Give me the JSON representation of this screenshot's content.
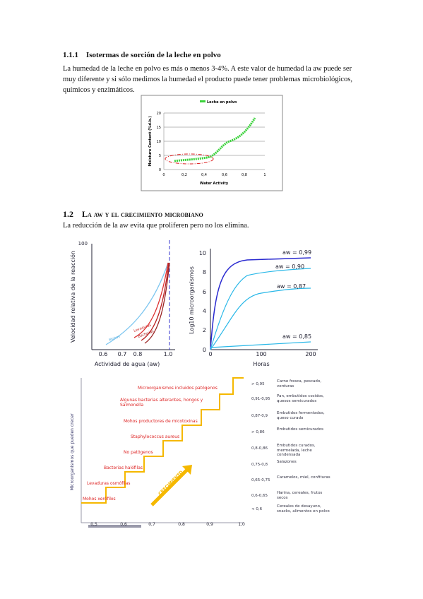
{
  "section1": {
    "number": "1.1.1",
    "title": "Isotermas de sorción de la leche en polvo",
    "paragraph": "La humedad de la leche en polvo es más o menos 3-4%. A este valor de humedad la aw puede ser muy diferente y si sólo medimos la humedad el producto puede tener problemas microbiológicos, químicos y enzimáticos."
  },
  "figure1": {
    "legend": "Leche en polvo",
    "y_label": "Moisture Content (%d.b.)",
    "x_label": "Water Activity",
    "y_ticks": [
      "0",
      "5",
      "10",
      "15",
      "20"
    ],
    "x_ticks": [
      "0",
      "0,2",
      "0,4",
      "0,6",
      "0,8",
      "1"
    ]
  },
  "section2": {
    "number": "1.2",
    "title": "La aw y el crecimiento microbiano",
    "paragraph": "La reducción de la aw evita que proliferen pero no los elimina."
  },
  "figure2": {
    "left": {
      "y_label": "Velocidad relativa de la reacción",
      "y_tick": "100",
      "x_ticks": [
        "0.6",
        "0.7",
        "0.8",
        "1.0"
      ],
      "x_label": "Actividad de agua (aw)",
      "curves": [
        "Mohos",
        "Levaduras",
        "Bacterias"
      ]
    },
    "right": {
      "y_label": "Log10 microorganismos",
      "y_ticks": [
        "0",
        "2",
        "4",
        "6",
        "8",
        "10"
      ],
      "x_ticks": [
        "0",
        "100",
        "200"
      ],
      "x_label": "Horas",
      "curves": [
        "aw = 0,99",
        "aw = 0,90",
        "aw = 0,87",
        "aw = 0,85"
      ]
    }
  },
  "figure3": {
    "y_label": "Microorganismos que pueden crecer",
    "arrow": "CRECIMIENTO",
    "x_ticks": [
      "0,5",
      "0,6",
      "0,7",
      "0,8",
      "0,9",
      "1,0"
    ],
    "organisms": [
      "Mohos xerófilos",
      "Levaduras osmófilas",
      "Bacterias halófilas",
      "No patógenos",
      "Staphylococcus aureus",
      "Mohos productores de micotoxinas",
      "Algunas bacterias alterantes, hongos y Salmonella",
      "Microorganismos incluidos patógenos"
    ],
    "foods": [
      {
        "aw": "> 0,95",
        "food": "Carne fresca, pescado, verduras"
      },
      {
        "aw": "0,91-0,95",
        "food": "Pan, embutidos cocidos, quesos semicurados"
      },
      {
        "aw": "0,87-0,9",
        "food": "Embutidos fermentados, queso curado"
      },
      {
        "aw": "> 0,86",
        "food": "Embutidos semicurados"
      },
      {
        "aw": "0,8-0,86",
        "food": "Embutidos curados, mermelada, leche condensada"
      },
      {
        "aw": "0,75-0,8",
        "food": "Salazones"
      },
      {
        "aw": "0,65-0,75",
        "food": "Caramelos, miel, confituras"
      },
      {
        "aw": "0,6-0,65",
        "food": "Harina, cereales, frutos secos"
      },
      {
        "aw": "< 0,6",
        "food": "Cereales de desayuno, snacks, alimentos en polvo"
      }
    ]
  }
}
